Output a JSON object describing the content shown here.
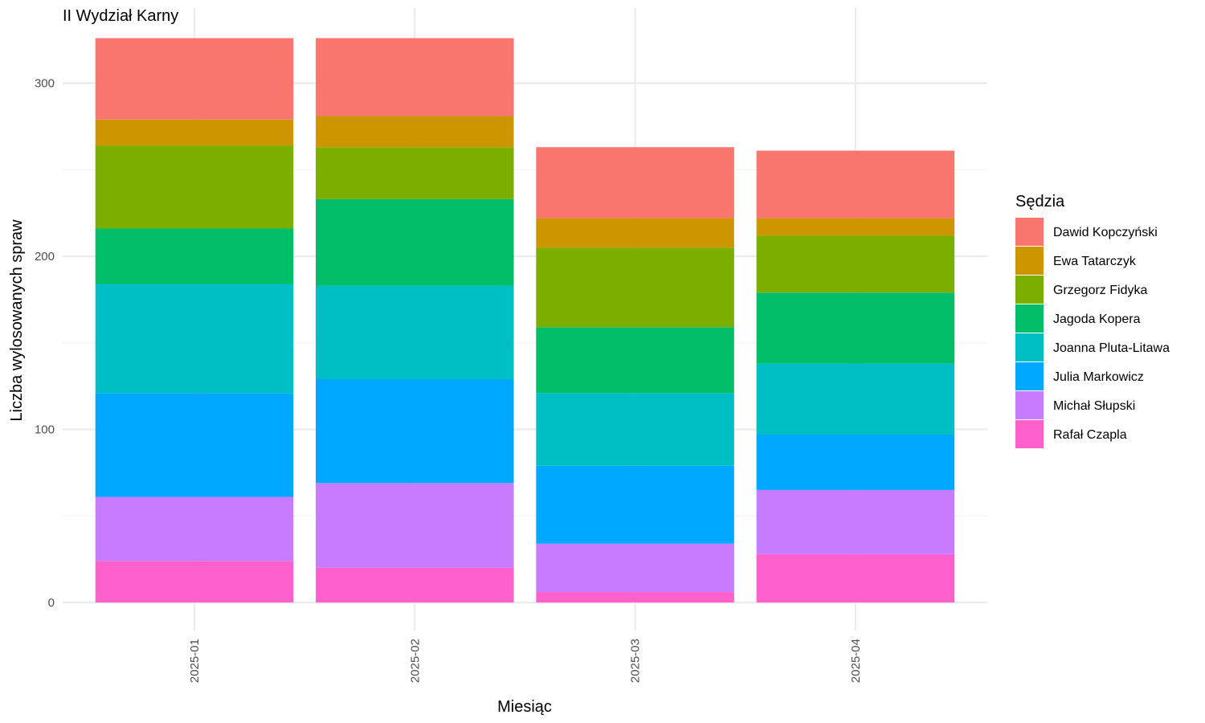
{
  "chart_data": {
    "type": "bar",
    "stacked": true,
    "title": "II Wydział Karny",
    "xlabel": "Miesiąc",
    "ylabel": "Liczba wylosowanych spraw",
    "categories": [
      "2025-01",
      "2025-02",
      "2025-03",
      "2025-04"
    ],
    "ylim": [
      0,
      330
    ],
    "yticks": [
      0,
      100,
      200,
      300
    ],
    "grid": true,
    "legend": {
      "title": "Sędzia",
      "placement": "right"
    },
    "series": [
      {
        "name": "Rafał Czapla",
        "color": "#FF61CC",
        "values": [
          24,
          20,
          6,
          28
        ]
      },
      {
        "name": "Michał Słupski",
        "color": "#C77CFF",
        "values": [
          37,
          49,
          28,
          37
        ]
      },
      {
        "name": "Julia Markowicz",
        "color": "#00A9FF",
        "values": [
          60,
          60,
          45,
          32
        ]
      },
      {
        "name": "Joanna Pluta-Litawa",
        "color": "#00BFC4",
        "values": [
          63,
          54,
          42,
          41
        ]
      },
      {
        "name": "Jagoda Kopera",
        "color": "#00BE67",
        "values": [
          32,
          50,
          38,
          41
        ]
      },
      {
        "name": "Grzegorz Fidyka",
        "color": "#7CAE00",
        "values": [
          48,
          30,
          46,
          33
        ]
      },
      {
        "name": "Ewa Tatarczyk",
        "color": "#CD9600",
        "values": [
          15,
          18,
          17,
          10
        ]
      },
      {
        "name": "Dawid Kopczyński",
        "color": "#F8766D",
        "values": [
          47,
          45,
          41,
          39
        ]
      }
    ],
    "legend_order": [
      "Dawid Kopczyński",
      "Ewa Tatarczyk",
      "Grzegorz Fidyka",
      "Jagoda Kopera",
      "Joanna Pluta-Litawa",
      "Julia Markowicz",
      "Michał Słupski",
      "Rafał Czapla"
    ]
  }
}
